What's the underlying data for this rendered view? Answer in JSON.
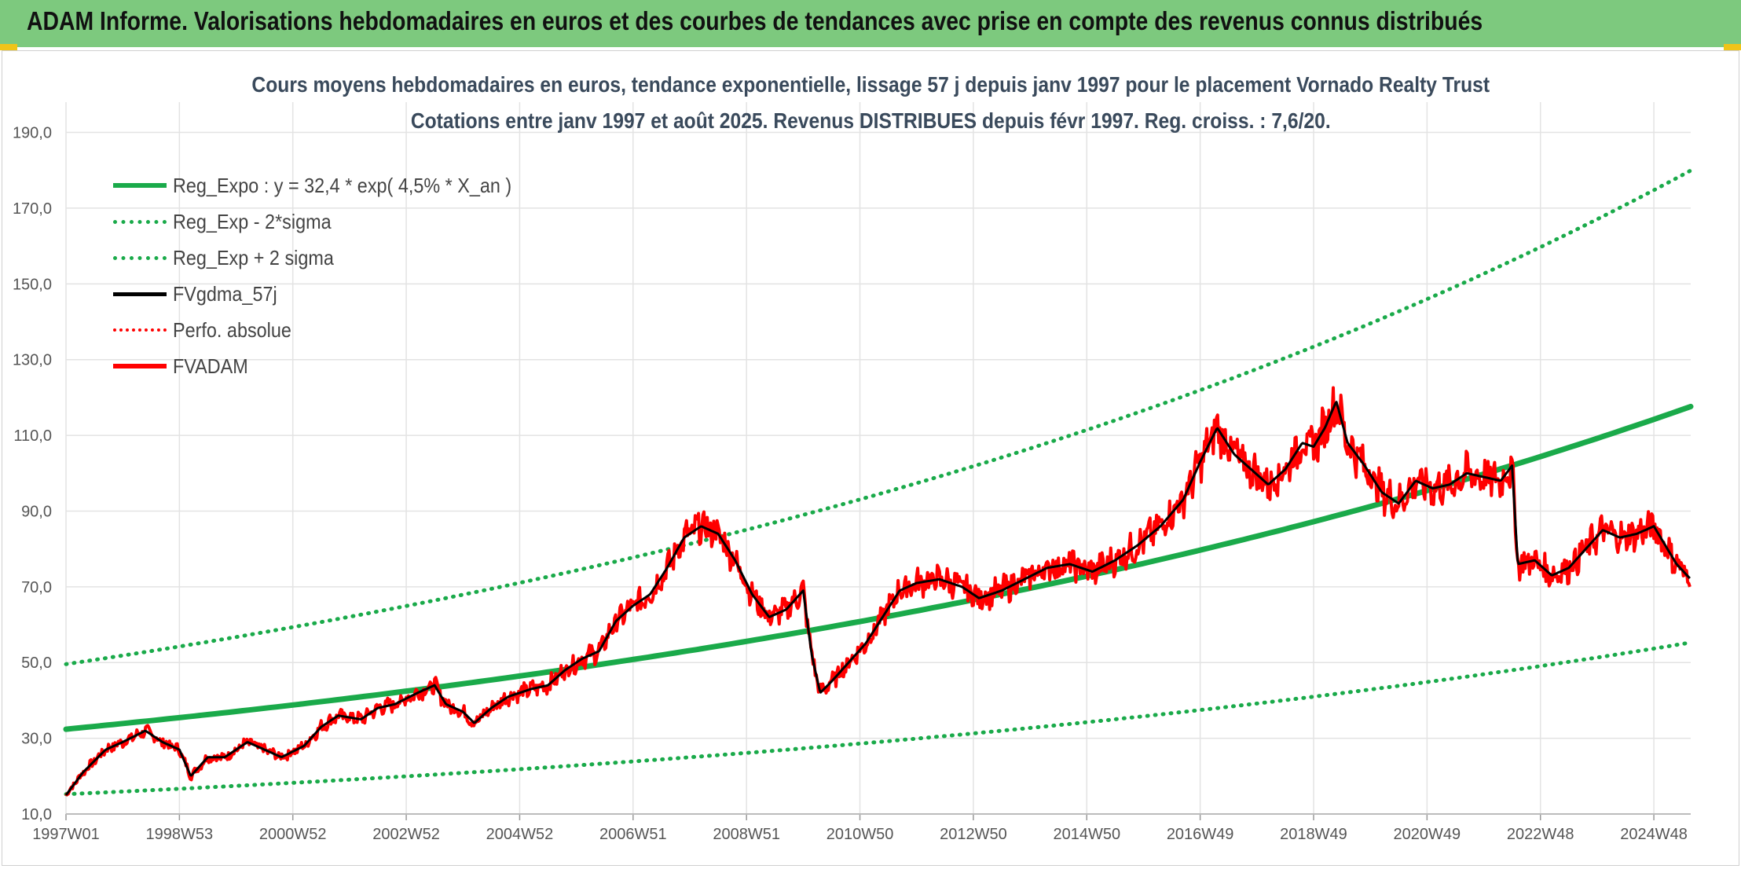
{
  "header": {
    "title": "ADAM Informe. Valorisations hebdomadaires en euros et des courbes de tendances avec prise en compte des revenus connus distribués"
  },
  "chart_data": {
    "type": "line",
    "title_line1": "Cours moyens hebdomadaires en euros, tendance exponentielle, lissage 57 j depuis janv 1997 pour le placement Vornado Realty Trust",
    "title_line2": "Cotations entre janv 1997 et août 2025. Revenus DISTRIBUES depuis févr 1997. Reg. croiss. : 7,6/20.",
    "x_range": [
      1997.0,
      2025.65
    ],
    "ylim": [
      10,
      198
    ],
    "y_ticks": [
      "10,0",
      "30,0",
      "50,0",
      "70,0",
      "90,0",
      "110,0",
      "130,0",
      "150,0",
      "170,0",
      "190,0"
    ],
    "y_tick_values": [
      10,
      30,
      50,
      70,
      90,
      110,
      130,
      150,
      170,
      190
    ],
    "x_ticks": [
      {
        "label": "1997W01",
        "x": 1997.0
      },
      {
        "label": "1998W53",
        "x": 1999.0
      },
      {
        "label": "2000W52",
        "x": 2001.0
      },
      {
        "label": "2002W52",
        "x": 2003.0
      },
      {
        "label": "2004W52",
        "x": 2005.0
      },
      {
        "label": "2006W51",
        "x": 2007.0
      },
      {
        "label": "2008W51",
        "x": 2009.0
      },
      {
        "label": "2010W50",
        "x": 2011.0
      },
      {
        "label": "2012W50",
        "x": 2013.0
      },
      {
        "label": "2014W50",
        "x": 2015.0
      },
      {
        "label": "2016W49",
        "x": 2017.0
      },
      {
        "label": "2018W49",
        "x": 2019.0
      },
      {
        "label": "2020W49",
        "x": 2021.0
      },
      {
        "label": "2022W48",
        "x": 2023.0
      },
      {
        "label": "2024W48",
        "x": 2025.0
      }
    ],
    "regression": {
      "a": 32.4,
      "rate": 0.045,
      "sigma_factor": 0.53
    },
    "legend": [
      {
        "label": "Reg_Expo : y = 32,4 * exp( 4,5% *  X_an )",
        "color": "#1aaa4a",
        "style": "solid"
      },
      {
        "label": "Reg_Exp - 2*sigma",
        "color": "#1aaa4a",
        "style": "dotted"
      },
      {
        "label": "Reg_Exp + 2 sigma",
        "color": "#1aaa4a",
        "style": "dotted"
      },
      {
        "label": "FVgdma_57j",
        "color": "#000000",
        "style": "solid"
      },
      {
        "label": "Perfo. absolue",
        "color": "#ff0000",
        "style": "dotted"
      },
      {
        "label": "FVADAM",
        "color": "#ff0000",
        "style": "solid"
      }
    ],
    "colors": {
      "trend": "#1aaa4a",
      "smooth": "#000000",
      "price": "#ff0000",
      "grid": "#e3e3e3",
      "axis_text": "#555555"
    },
    "series": [
      {
        "name": "FVADAM",
        "points": [
          [
            1997.0,
            15
          ],
          [
            1997.3,
            21
          ],
          [
            1997.7,
            27
          ],
          [
            1998.0,
            29
          ],
          [
            1998.4,
            32
          ],
          [
            1998.7,
            29
          ],
          [
            1999.0,
            27
          ],
          [
            1999.2,
            20
          ],
          [
            1999.5,
            25
          ],
          [
            1999.8,
            25
          ],
          [
            2000.2,
            29
          ],
          [
            2000.5,
            27
          ],
          [
            2000.8,
            25
          ],
          [
            2001.2,
            28
          ],
          [
            2001.5,
            33
          ],
          [
            2001.8,
            36
          ],
          [
            2002.2,
            35
          ],
          [
            2002.5,
            38
          ],
          [
            2002.8,
            39
          ],
          [
            2003.2,
            42
          ],
          [
            2003.5,
            44
          ],
          [
            2003.7,
            39
          ],
          [
            2004.0,
            37
          ],
          [
            2004.2,
            34
          ],
          [
            2004.5,
            38
          ],
          [
            2004.8,
            41
          ],
          [
            2005.2,
            43
          ],
          [
            2005.5,
            44
          ],
          [
            2005.8,
            48
          ],
          [
            2006.1,
            51
          ],
          [
            2006.4,
            53
          ],
          [
            2006.7,
            61
          ],
          [
            2007.0,
            65
          ],
          [
            2007.3,
            68
          ],
          [
            2007.6,
            75
          ],
          [
            2007.9,
            83
          ],
          [
            2008.2,
            86
          ],
          [
            2008.5,
            84
          ],
          [
            2008.8,
            77
          ],
          [
            2009.1,
            68
          ],
          [
            2009.4,
            62
          ],
          [
            2009.7,
            64
          ],
          [
            2010.0,
            69
          ],
          [
            2010.15,
            52
          ],
          [
            2010.3,
            42
          ],
          [
            2010.5,
            45
          ],
          [
            2010.8,
            50
          ],
          [
            2011.1,
            55
          ],
          [
            2011.4,
            62
          ],
          [
            2011.7,
            69
          ],
          [
            2012.0,
            71
          ],
          [
            2012.4,
            72
          ],
          [
            2012.8,
            70
          ],
          [
            2013.1,
            67
          ],
          [
            2013.5,
            69
          ],
          [
            2013.9,
            72
          ],
          [
            2014.3,
            75
          ],
          [
            2014.7,
            76
          ],
          [
            2015.1,
            74
          ],
          [
            2015.5,
            77
          ],
          [
            2015.9,
            81
          ],
          [
            2016.3,
            86
          ],
          [
            2016.7,
            93
          ],
          [
            2017.0,
            103
          ],
          [
            2017.3,
            112
          ],
          [
            2017.6,
            105
          ],
          [
            2017.9,
            101
          ],
          [
            2018.2,
            97
          ],
          [
            2018.5,
            101
          ],
          [
            2018.8,
            108
          ],
          [
            2019.0,
            107
          ],
          [
            2019.2,
            112
          ],
          [
            2019.4,
            119
          ],
          [
            2019.6,
            108
          ],
          [
            2019.9,
            102
          ],
          [
            2020.2,
            95
          ],
          [
            2020.5,
            92
          ],
          [
            2020.8,
            98
          ],
          [
            2021.1,
            96
          ],
          [
            2021.4,
            97
          ],
          [
            2021.7,
            100
          ],
          [
            2022.0,
            99
          ],
          [
            2022.3,
            98
          ],
          [
            2022.5,
            102
          ],
          [
            2022.6,
            76
          ],
          [
            2022.9,
            77
          ],
          [
            2023.2,
            73
          ],
          [
            2023.5,
            75
          ],
          [
            2023.8,
            80
          ],
          [
            2024.1,
            85
          ],
          [
            2024.4,
            83
          ],
          [
            2024.7,
            84
          ],
          [
            2025.0,
            86
          ],
          [
            2025.2,
            81
          ],
          [
            2025.4,
            76
          ],
          [
            2025.65,
            72
          ]
        ]
      }
    ]
  }
}
